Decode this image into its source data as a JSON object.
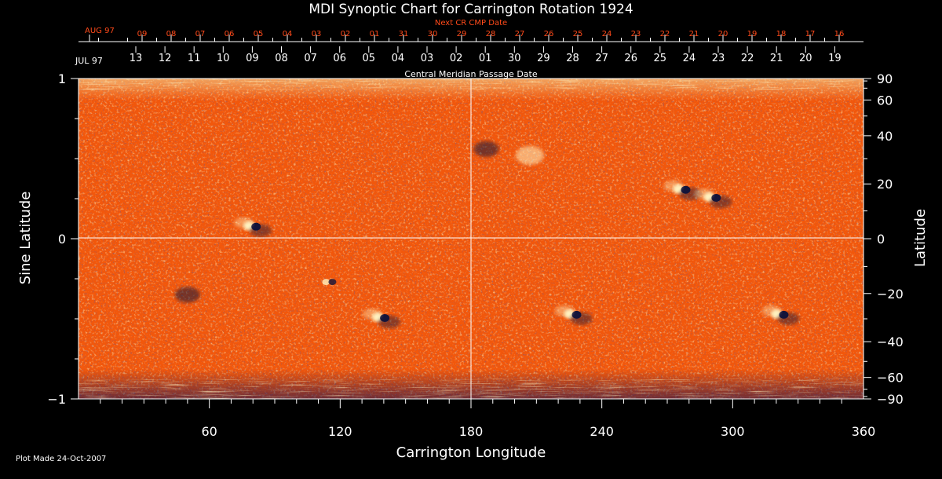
{
  "chart_data": {
    "type": "heatmap",
    "title": "MDI Synoptic Chart for Carrington Rotation 1924",
    "xlabel": "Carrington Longitude",
    "ylabel_left": "Sine Latitude",
    "ylabel_right": "Latitude",
    "xlim": [
      0,
      360
    ],
    "ylim": [
      -1,
      1
    ],
    "x_ticks": [
      60,
      120,
      180,
      240,
      300,
      360
    ],
    "y_ticks_left": [
      {
        "value": -1,
        "label": "−1"
      },
      {
        "value": 0,
        "label": "0"
      },
      {
        "value": 1,
        "label": "1"
      }
    ],
    "y_ticks_right": [
      {
        "deg": 90,
        "label": "90"
      },
      {
        "deg": 60,
        "label": "60"
      },
      {
        "deg": 40,
        "label": "40"
      },
      {
        "deg": 20,
        "label": "20"
      },
      {
        "deg": 0,
        "label": "0"
      },
      {
        "deg": -20,
        "label": "−20"
      },
      {
        "deg": -40,
        "label": "−40"
      },
      {
        "deg": -60,
        "label": "−60"
      },
      {
        "deg": -90,
        "label": "−90"
      }
    ],
    "top_axis_next": {
      "title": "Next CR CMP Date",
      "month_label": "AUG 97",
      "labels": [
        "09",
        "08",
        "07",
        "06",
        "05",
        "04",
        "03",
        "02",
        "01",
        "31",
        "30",
        "29",
        "28",
        "27",
        "26",
        "25",
        "24",
        "23",
        "22",
        "21",
        "20",
        "19",
        "18",
        "17",
        "16"
      ]
    },
    "top_axis_cmp": {
      "title": "Central Meridian Passage Date",
      "month_label": "JUL 97",
      "labels": [
        "13",
        "12",
        "11",
        "10",
        "09",
        "08",
        "07",
        "06",
        "05",
        "04",
        "03",
        "02",
        "01",
        "30",
        "29",
        "28",
        "27",
        "26",
        "25",
        "24",
        "23",
        "22",
        "21",
        "20",
        "19"
      ]
    },
    "colors": {
      "background": "#000000",
      "axes": "#ffffff",
      "next_cr_text": "#ff4a1a",
      "field_base": "#f2570b",
      "positive_polarity": "#fff2c0",
      "negative_polarity": "#14143a"
    },
    "active_regions": [
      {
        "lon": 80,
        "sinlat": 0.08,
        "polarity": "bipole"
      },
      {
        "lon": 277,
        "sinlat": 0.31,
        "polarity": "bipole"
      },
      {
        "lon": 291,
        "sinlat": 0.26,
        "polarity": "bipole"
      },
      {
        "lon": 139,
        "sinlat": -0.49,
        "polarity": "bipole"
      },
      {
        "lon": 322,
        "sinlat": -0.47,
        "polarity": "bipole"
      },
      {
        "lon": 227,
        "sinlat": -0.47,
        "polarity": "bipole"
      },
      {
        "lon": 207,
        "sinlat": 0.52,
        "polarity": "positive"
      },
      {
        "lon": 187,
        "sinlat": 0.56,
        "polarity": "negative"
      },
      {
        "lon": 50,
        "sinlat": -0.35,
        "polarity": "negative"
      },
      {
        "lon": 115,
        "sinlat": -0.27,
        "polarity": "mixed"
      }
    ]
  },
  "footer": {
    "plot_made": "Plot Made 24-Oct-2007"
  }
}
